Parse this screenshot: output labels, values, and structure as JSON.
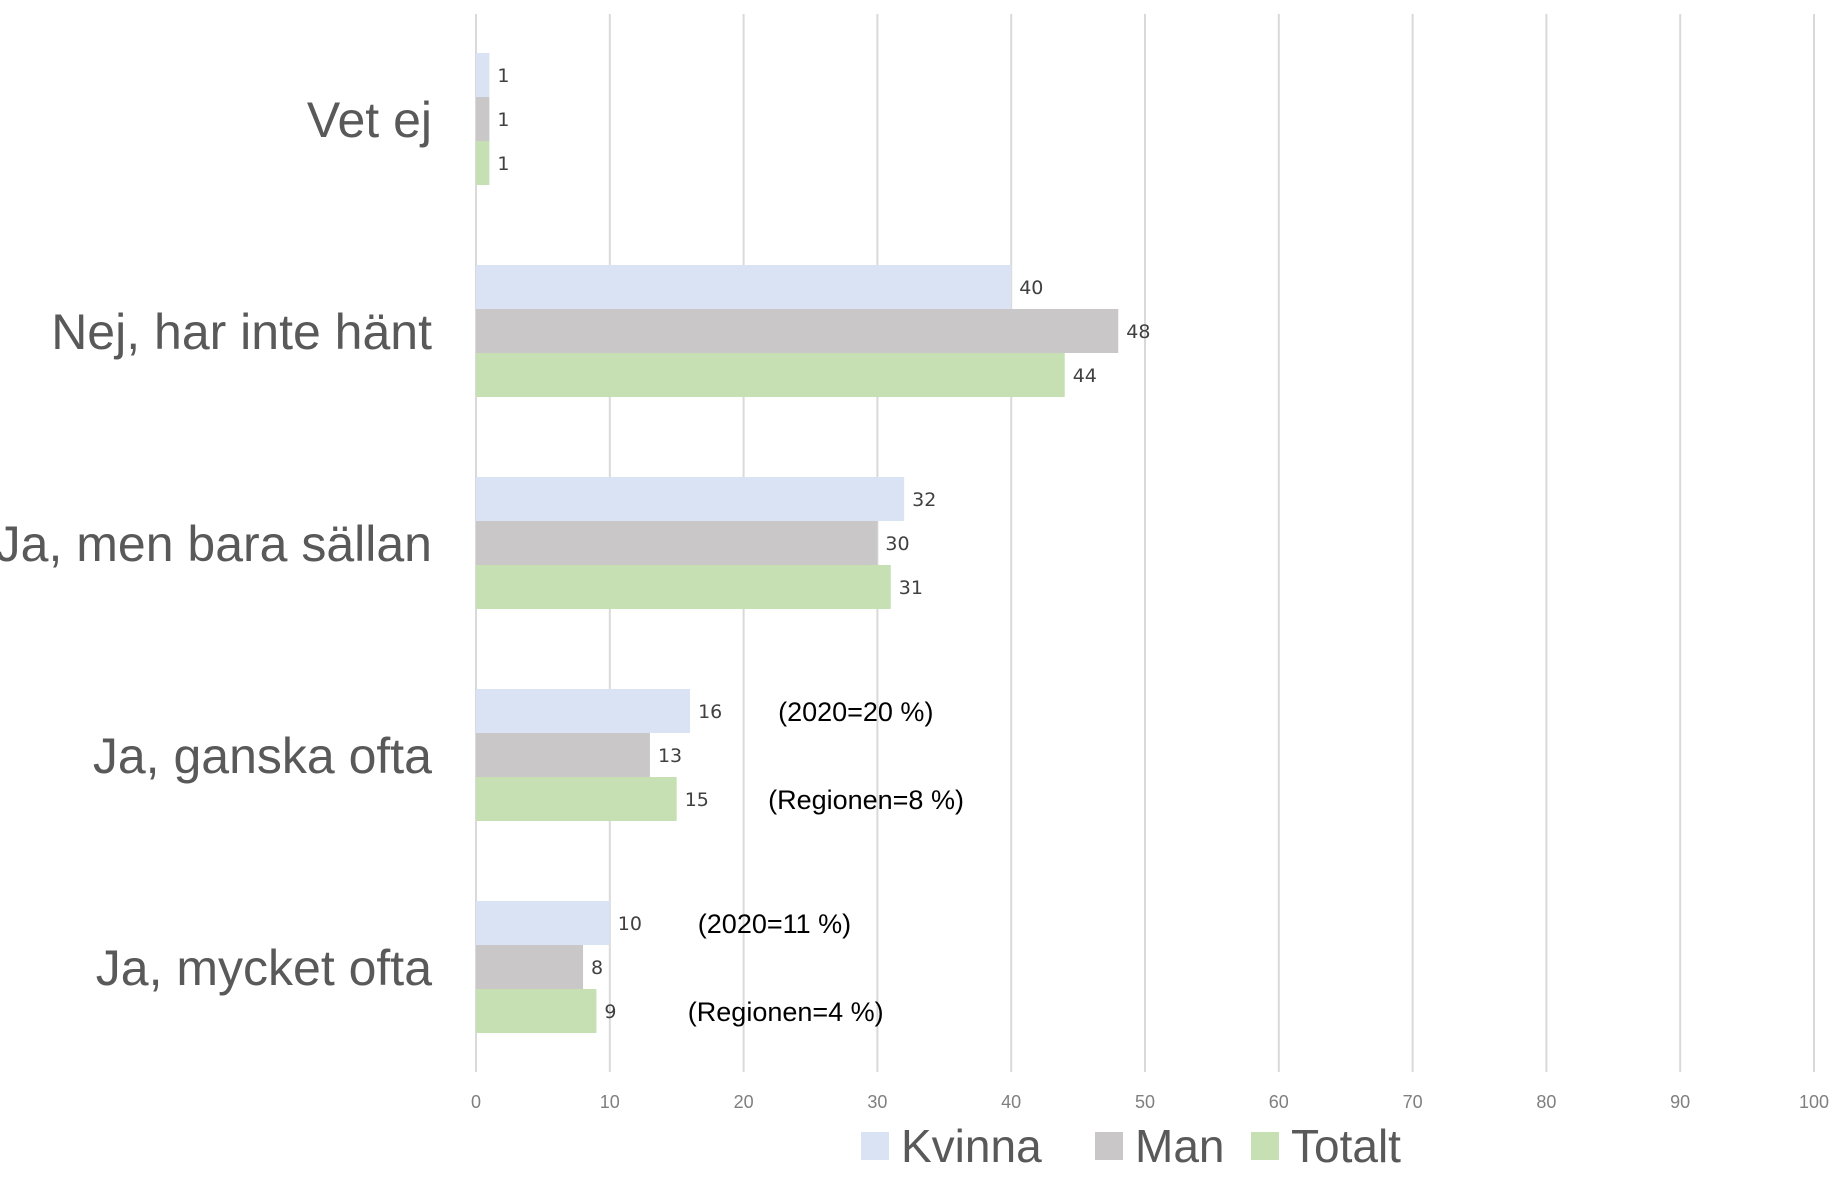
{
  "chart_data": {
    "type": "bar",
    "orientation": "horizontal",
    "title": "",
    "xlabel": "",
    "ylabel": "",
    "categories": [
      "Vet ej",
      "Nej, har inte hänt",
      "Ja, men bara sällan",
      "Ja, ganska ofta",
      "Ja, mycket ofta"
    ],
    "series": [
      {
        "name": "Kvinna",
        "color": "#dae3f3",
        "values": [
          1,
          40,
          32,
          16,
          10
        ]
      },
      {
        "name": "Man",
        "color": "#c9c7c7",
        "values": [
          1,
          48,
          30,
          13,
          8
        ]
      },
      {
        "name": "Totalt",
        "color": "#c6e0b4",
        "values": [
          1,
          44,
          31,
          15,
          9
        ]
      }
    ],
    "xlim": [
      0,
      100
    ],
    "xticks": [
      0,
      10,
      20,
      30,
      40,
      50,
      60,
      70,
      80,
      90,
      100
    ],
    "grid": true,
    "legend_position": "bottom",
    "annotations": [
      {
        "category": "Ja, ganska ofta",
        "series": "Kvinna",
        "text": "(2020=20 %)"
      },
      {
        "category": "Ja, ganska ofta",
        "series": "Totalt",
        "text": "(Regionen=8 %)"
      },
      {
        "category": "Ja, mycket ofta",
        "series": "Kvinna",
        "text": "(2020=11 %)"
      },
      {
        "category": "Ja, mycket ofta",
        "series": "Totalt",
        "text": "(Regionen=4 %)"
      }
    ]
  }
}
